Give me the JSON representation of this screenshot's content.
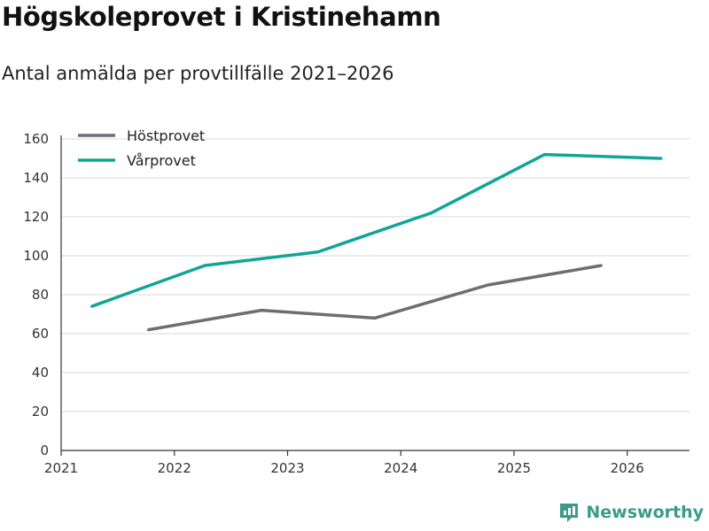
{
  "header": {
    "title": "Högskoleprovet i Kristinehamn",
    "subtitle": "Antal anmälda per provtillfälle 2021–2026"
  },
  "brand": {
    "name": "Newsworthy",
    "color": "#3a9c88"
  },
  "chart_data": {
    "type": "line",
    "title": "Högskoleprovet i Kristinehamn",
    "subtitle": "Antal anmälda per provtillfälle 2021–2026",
    "xlabel": "",
    "ylabel": "",
    "xlim": [
      2021,
      2026.55
    ],
    "ylim": [
      0,
      160
    ],
    "yticks": [
      0,
      20,
      40,
      60,
      80,
      100,
      120,
      140,
      160
    ],
    "xticks": [
      2021,
      2022,
      2023,
      2024,
      2025,
      2026
    ],
    "grid": true,
    "legend_position": "top-left",
    "series": [
      {
        "name": "Höstprovet",
        "color": "#6e6d72",
        "x": [
          2021.77,
          2022.77,
          2023.77,
          2024.77,
          2025.77
        ],
        "values": [
          62,
          72,
          68,
          85,
          95
        ]
      },
      {
        "name": "Vårprovet",
        "color": "#0fa597",
        "x": [
          2021.27,
          2022.27,
          2023.27,
          2024.27,
          2025.27,
          2026.3
        ],
        "values": [
          74,
          95,
          102,
          122,
          152,
          150
        ]
      }
    ]
  }
}
